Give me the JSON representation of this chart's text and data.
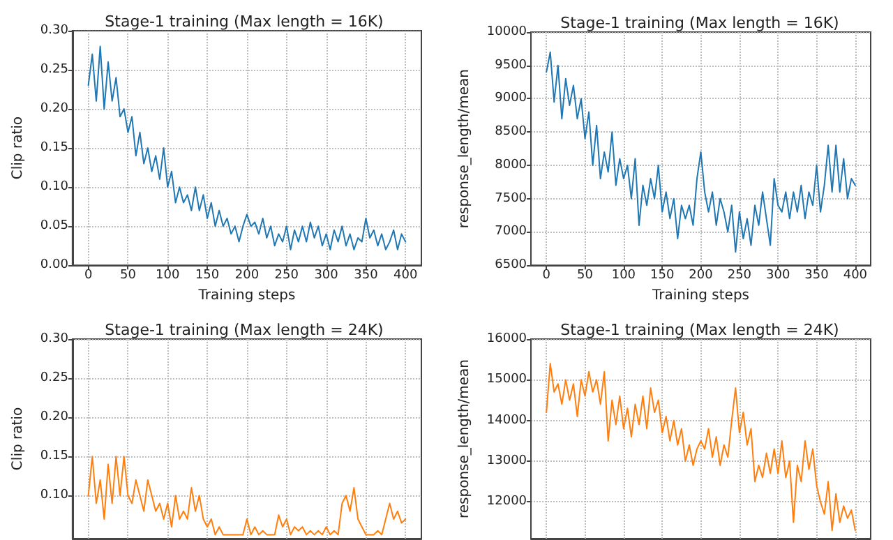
{
  "chart_data": [
    {
      "type": "line",
      "title": "Stage-1 training (Max length = 16K)",
      "xlabel": "Training steps",
      "ylabel": "Clip ratio",
      "grid": true,
      "marker": "none",
      "xlim": [
        -20,
        420
      ],
      "xticks": [
        0,
        50,
        100,
        150,
        200,
        250,
        300,
        350,
        400
      ],
      "ylim": [
        0,
        0.3
      ],
      "yticks": [
        {
          "value": 0,
          "label": "0.00"
        },
        {
          "value": 0.05,
          "label": "0.05"
        },
        {
          "value": 0.1,
          "label": "0.10"
        },
        {
          "value": 0.15,
          "label": "0.15"
        },
        {
          "value": 0.2,
          "label": "0.20"
        },
        {
          "value": 0.25,
          "label": "0.25"
        },
        {
          "value": 0.3,
          "label": "0.30"
        }
      ],
      "x": [
        0,
        5,
        10,
        15,
        20,
        25,
        30,
        35,
        40,
        45,
        50,
        55,
        60,
        65,
        70,
        75,
        80,
        85,
        90,
        95,
        100,
        105,
        110,
        115,
        120,
        125,
        130,
        135,
        140,
        145,
        150,
        155,
        160,
        165,
        170,
        175,
        180,
        185,
        190,
        195,
        200,
        205,
        210,
        215,
        220,
        225,
        230,
        235,
        240,
        245,
        250,
        255,
        260,
        265,
        270,
        275,
        280,
        285,
        290,
        295,
        300,
        305,
        310,
        315,
        320,
        325,
        330,
        335,
        340,
        345,
        350,
        355,
        360,
        365,
        370,
        375,
        380,
        385,
        390,
        395,
        400
      ],
      "series": [
        {
          "color": "#1f77b4",
          "values": [
            0.23,
            0.27,
            0.21,
            0.28,
            0.2,
            0.26,
            0.21,
            0.24,
            0.19,
            0.2,
            0.17,
            0.19,
            0.14,
            0.17,
            0.13,
            0.15,
            0.12,
            0.14,
            0.11,
            0.15,
            0.1,
            0.12,
            0.08,
            0.1,
            0.08,
            0.09,
            0.07,
            0.1,
            0.07,
            0.09,
            0.06,
            0.08,
            0.05,
            0.07,
            0.05,
            0.06,
            0.04,
            0.05,
            0.03,
            0.05,
            0.065,
            0.05,
            0.055,
            0.04,
            0.06,
            0.035,
            0.05,
            0.025,
            0.04,
            0.03,
            0.05,
            0.02,
            0.045,
            0.03,
            0.05,
            0.03,
            0.055,
            0.035,
            0.05,
            0.025,
            0.04,
            0.02,
            0.045,
            0.03,
            0.05,
            0.025,
            0.04,
            0.02,
            0.035,
            0.03,
            0.06,
            0.035,
            0.045,
            0.025,
            0.04,
            0.02,
            0.03,
            0.045,
            0.02,
            0.04,
            0.03
          ]
        }
      ]
    },
    {
      "type": "line",
      "title": "Stage-1 training (Max length = 16K)",
      "xlabel": "Training steps",
      "ylabel": "response_length/mean",
      "grid": true,
      "marker": "none",
      "xlim": [
        -20,
        420
      ],
      "xticks": [
        0,
        50,
        100,
        150,
        200,
        250,
        300,
        350,
        400
      ],
      "ylim": [
        6500,
        10000
      ],
      "yticks": [
        6500,
        7000,
        7500,
        8000,
        8500,
        9000,
        9500,
        10000
      ],
      "x": [
        0,
        5,
        10,
        15,
        20,
        25,
        30,
        35,
        40,
        45,
        50,
        55,
        60,
        65,
        70,
        75,
        80,
        85,
        90,
        95,
        100,
        105,
        110,
        115,
        120,
        125,
        130,
        135,
        140,
        145,
        150,
        155,
        160,
        165,
        170,
        175,
        180,
        185,
        190,
        195,
        200,
        205,
        210,
        215,
        220,
        225,
        230,
        235,
        240,
        245,
        250,
        255,
        260,
        265,
        270,
        275,
        280,
        285,
        290,
        295,
        300,
        305,
        310,
        315,
        320,
        325,
        330,
        335,
        340,
        345,
        350,
        355,
        360,
        365,
        370,
        375,
        380,
        385,
        390,
        395,
        400
      ],
      "series": [
        {
          "color": "#1f77b4",
          "values": [
            9400,
            9700,
            8950,
            9500,
            8700,
            9300,
            8900,
            9200,
            8700,
            9000,
            8400,
            8800,
            8000,
            8600,
            7800,
            8200,
            7900,
            8500,
            7700,
            8100,
            7800,
            8000,
            7500,
            8100,
            7100,
            7700,
            7400,
            7800,
            7500,
            8000,
            7300,
            7600,
            7200,
            7500,
            6900,
            7400,
            7200,
            7400,
            7100,
            7800,
            8200,
            7600,
            7300,
            7600,
            7100,
            7500,
            7300,
            7000,
            7400,
            6700,
            7300,
            6900,
            7200,
            6800,
            7400,
            7100,
            7600,
            7200,
            6800,
            7800,
            7400,
            7300,
            7600,
            7200,
            7600,
            7300,
            7700,
            7200,
            7600,
            7400,
            8000,
            7300,
            7700,
            8300,
            7600,
            8300,
            7600,
            8100,
            7500,
            7800,
            7700
          ]
        }
      ]
    },
    {
      "type": "line",
      "title": "Stage-1 training (Max length = 24K)",
      "ylabel": "Clip ratio",
      "grid": true,
      "marker": "none",
      "tick_labels": "y",
      "xlim": [
        -20,
        420
      ],
      "xticks": [
        {
          "value": 0,
          "label": null
        },
        {
          "value": 50,
          "label": null
        },
        {
          "value": 100,
          "label": null
        },
        {
          "value": 150,
          "label": null
        },
        {
          "value": 200,
          "label": null
        },
        {
          "value": 250,
          "label": null
        },
        {
          "value": 300,
          "label": null
        },
        {
          "value": 350,
          "label": null
        },
        {
          "value": 400,
          "label": null
        }
      ],
      "ylim": [
        0.045,
        0.3
      ],
      "yticks": [
        {
          "value": 0.1,
          "label": "0.10"
        },
        {
          "value": 0.15,
          "label": "0.15"
        },
        {
          "value": 0.2,
          "label": "0.20"
        },
        {
          "value": 0.25,
          "label": "0.25"
        },
        {
          "value": 0.3,
          "label": "0.30"
        }
      ],
      "x": [
        0,
        5,
        10,
        15,
        20,
        25,
        30,
        35,
        40,
        45,
        50,
        55,
        60,
        65,
        70,
        75,
        80,
        85,
        90,
        95,
        100,
        105,
        110,
        115,
        120,
        125,
        130,
        135,
        140,
        145,
        150,
        155,
        160,
        165,
        170,
        175,
        180,
        185,
        190,
        195,
        200,
        205,
        210,
        215,
        220,
        225,
        230,
        235,
        240,
        245,
        250,
        255,
        260,
        265,
        270,
        275,
        280,
        285,
        290,
        295,
        300,
        305,
        310,
        315,
        320,
        325,
        330,
        335,
        340,
        345,
        350,
        355,
        360,
        365,
        370,
        375,
        380,
        385,
        390,
        395,
        400
      ],
      "series": [
        {
          "color": "#ff7f0e",
          "values": [
            0.1,
            0.15,
            0.09,
            0.12,
            0.07,
            0.14,
            0.09,
            0.15,
            0.1,
            0.15,
            0.1,
            0.09,
            0.12,
            0.1,
            0.08,
            0.12,
            0.1,
            0.08,
            0.09,
            0.07,
            0.09,
            0.06,
            0.1,
            0.07,
            0.08,
            0.07,
            0.11,
            0.08,
            0.1,
            0.07,
            0.06,
            0.07,
            0.05,
            0.06,
            0.05,
            0.05,
            0.05,
            0.05,
            0.05,
            0.05,
            0.07,
            0.05,
            0.06,
            0.05,
            0.055,
            0.05,
            0.05,
            0.05,
            0.075,
            0.06,
            0.07,
            0.05,
            0.06,
            0.055,
            0.06,
            0.05,
            0.055,
            0.05,
            0.055,
            0.05,
            0.06,
            0.05,
            0.055,
            0.05,
            0.09,
            0.1,
            0.08,
            0.11,
            0.07,
            0.06,
            0.05,
            0.05,
            0.05,
            0.055,
            0.05,
            0.07,
            0.09,
            0.07,
            0.08,
            0.065,
            0.07
          ]
        }
      ]
    },
    {
      "type": "line",
      "title": "Stage-1 training (Max length = 24K)",
      "ylabel": "response_length/mean",
      "grid": true,
      "marker": "none",
      "tick_labels": "y",
      "xlim": [
        -20,
        420
      ],
      "xticks": [
        {
          "value": 0,
          "label": null
        },
        {
          "value": 50,
          "label": null
        },
        {
          "value": 100,
          "label": null
        },
        {
          "value": 150,
          "label": null
        },
        {
          "value": 200,
          "label": null
        },
        {
          "value": 250,
          "label": null
        },
        {
          "value": 300,
          "label": null
        },
        {
          "value": 350,
          "label": null
        },
        {
          "value": 400,
          "label": null
        }
      ],
      "ylim": [
        11100,
        16000
      ],
      "yticks": [
        12000,
        13000,
        14000,
        15000,
        16000
      ],
      "x": [
        0,
        5,
        10,
        15,
        20,
        25,
        30,
        35,
        40,
        45,
        50,
        55,
        60,
        65,
        70,
        75,
        80,
        85,
        90,
        95,
        100,
        105,
        110,
        115,
        120,
        125,
        130,
        135,
        140,
        145,
        150,
        155,
        160,
        165,
        170,
        175,
        180,
        185,
        190,
        195,
        200,
        205,
        210,
        215,
        220,
        225,
        230,
        235,
        240,
        245,
        250,
        255,
        260,
        265,
        270,
        275,
        280,
        285,
        290,
        295,
        300,
        305,
        310,
        315,
        320,
        325,
        330,
        335,
        340,
        345,
        350,
        355,
        360,
        365,
        370,
        375,
        380,
        385,
        390,
        395,
        400
      ],
      "series": [
        {
          "color": "#ff7f0e",
          "values": [
            14200,
            15400,
            14700,
            14900,
            14400,
            15000,
            14500,
            14900,
            14100,
            15000,
            14600,
            15200,
            14700,
            15000,
            14400,
            15200,
            13500,
            14500,
            13900,
            14600,
            13800,
            14300,
            13600,
            14400,
            13900,
            14600,
            13800,
            14800,
            14200,
            14500,
            13700,
            14100,
            13500,
            14000,
            13400,
            13800,
            13000,
            13400,
            12900,
            13300,
            13500,
            13300,
            13800,
            13100,
            13600,
            12900,
            13400,
            13100,
            14000,
            14800,
            13700,
            14200,
            13400,
            13800,
            12500,
            12900,
            12600,
            13200,
            12700,
            13300,
            12700,
            13500,
            12600,
            13000,
            11500,
            12900,
            12500,
            13500,
            12800,
            13300,
            12400,
            12000,
            11700,
            12500,
            11300,
            12200,
            11500,
            11900,
            11600,
            11800,
            11300
          ]
        }
      ]
    }
  ]
}
